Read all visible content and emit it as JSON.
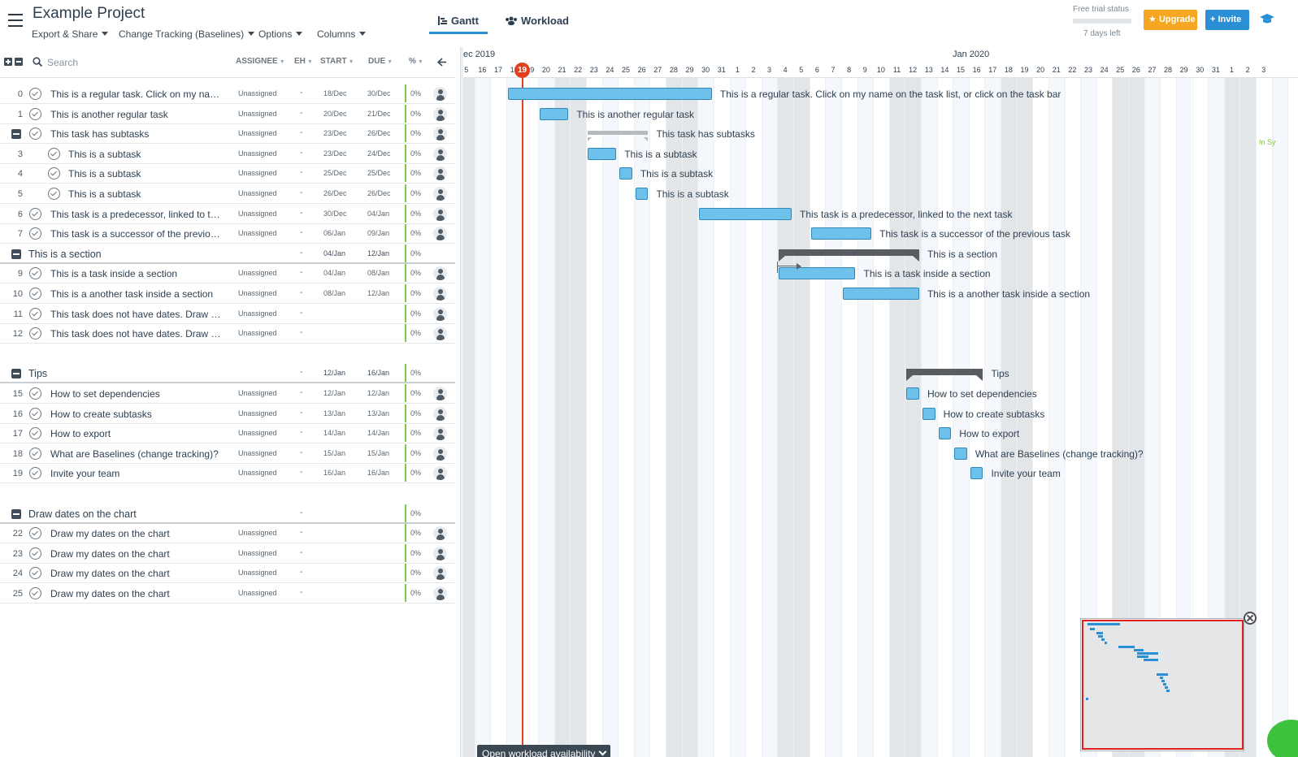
{
  "project": {
    "title": "Example Project"
  },
  "menus": [
    {
      "label": "Export & Share"
    },
    {
      "label": "Change Tracking (Baselines)"
    },
    {
      "label": "Options"
    },
    {
      "label": "Columns"
    }
  ],
  "view_tabs": {
    "gantt": "Gantt",
    "workload": "Workload",
    "active": "Gantt"
  },
  "trial": {
    "label": "Free trial status",
    "days_left": "7 days left"
  },
  "buttons": {
    "upgrade": "Upgrade",
    "invite": "Invite",
    "open_workload": "Open workload availability"
  },
  "grid": {
    "search_placeholder": "Search",
    "columns": {
      "assignee": "ASSIGNEE",
      "eh": "EH",
      "start": "START",
      "due": "DUE",
      "pct": "%"
    }
  },
  "rows": [
    {
      "num": "0",
      "name": "This is a regular task. Click on my name on the task list, or click on the task bar",
      "level": 0,
      "assignee": "Unassigned",
      "eh": "-",
      "start": "18/Dec",
      "due": "30/Dec",
      "pct": "0%"
    },
    {
      "num": "1",
      "name": "This is another regular task",
      "level": 0,
      "assignee": "Unassigned",
      "eh": "-",
      "start": "20/Dec",
      "due": "21/Dec",
      "pct": "0%"
    },
    {
      "num": "",
      "name": "This task has subtasks",
      "level": 0,
      "parent": true,
      "assignee": "Unassigned",
      "eh": "-",
      "start": "23/Dec",
      "due": "26/Dec",
      "pct": "0%"
    },
    {
      "num": "3",
      "name": "This is a subtask",
      "level": 1,
      "assignee": "Unassigned",
      "eh": "-",
      "start": "23/Dec",
      "due": "24/Dec",
      "pct": "0%"
    },
    {
      "num": "4",
      "name": "This is a subtask",
      "level": 1,
      "assignee": "Unassigned",
      "eh": "-",
      "start": "25/Dec",
      "due": "25/Dec",
      "pct": "0%"
    },
    {
      "num": "5",
      "name": "This is a subtask",
      "level": 1,
      "assignee": "Unassigned",
      "eh": "-",
      "start": "26/Dec",
      "due": "26/Dec",
      "pct": "0%"
    },
    {
      "num": "6",
      "name": "This task is a predecessor, linked to the next task",
      "level": 0,
      "assignee": "Unassigned",
      "eh": "-",
      "start": "30/Dec",
      "due": "04/Jan",
      "pct": "0%"
    },
    {
      "num": "7",
      "name": "This task is a successor of the previous task",
      "level": 0,
      "assignee": "Unassigned",
      "eh": "-",
      "start": "06/Jan",
      "due": "09/Jan",
      "pct": "0%"
    },
    {
      "num": "",
      "name": "This is a section",
      "section": true,
      "eh": "-",
      "start": "04/Jan",
      "due": "12/Jan",
      "pct": "0%"
    },
    {
      "num": "9",
      "name": "This is a task inside a section",
      "level": 0,
      "assignee": "Unassigned",
      "eh": "-",
      "start": "04/Jan",
      "due": "08/Jan",
      "pct": "0%"
    },
    {
      "num": "10",
      "name": "This is a another task inside a section",
      "level": 0,
      "assignee": "Unassigned",
      "eh": "-",
      "start": "08/Jan",
      "due": "12/Jan",
      "pct": "0%"
    },
    {
      "num": "11",
      "name": "This task does not have dates. Draw my dates on the chart",
      "level": 0,
      "assignee": "Unassigned",
      "eh": "-",
      "start": "",
      "due": "",
      "pct": "0%"
    },
    {
      "num": "12",
      "name": "This task does not have dates. Draw my dates on the chart",
      "level": 0,
      "assignee": "Unassigned",
      "eh": "-",
      "start": "",
      "due": "",
      "pct": "0%"
    },
    {
      "spacer": true
    },
    {
      "num": "",
      "name": "Tips",
      "section": true,
      "eh": "-",
      "start": "12/Jan",
      "due": "16/Jan",
      "pct": "0%"
    },
    {
      "num": "15",
      "name": "How to set dependencies",
      "level": 0,
      "assignee": "Unassigned",
      "eh": "-",
      "start": "12/Jan",
      "due": "12/Jan",
      "pct": "0%"
    },
    {
      "num": "16",
      "name": "How to create subtasks",
      "level": 0,
      "assignee": "Unassigned",
      "eh": "-",
      "start": "13/Jan",
      "due": "13/Jan",
      "pct": "0%"
    },
    {
      "num": "17",
      "name": "How to export",
      "level": 0,
      "assignee": "Unassigned",
      "eh": "-",
      "start": "14/Jan",
      "due": "14/Jan",
      "pct": "0%"
    },
    {
      "num": "18",
      "name": "What are Baselines (change tracking)?",
      "level": 0,
      "assignee": "Unassigned",
      "eh": "-",
      "start": "15/Jan",
      "due": "15/Jan",
      "pct": "0%"
    },
    {
      "num": "19",
      "name": "Invite your team",
      "level": 0,
      "assignee": "Unassigned",
      "eh": "-",
      "start": "16/Jan",
      "due": "16/Jan",
      "pct": "0%"
    },
    {
      "spacer": true
    },
    {
      "num": "",
      "name": "Draw dates on the chart",
      "section": true,
      "eh": "-",
      "start": "",
      "due": "",
      "pct": "0%"
    },
    {
      "num": "22",
      "name": "Draw my dates on the chart",
      "level": 0,
      "assignee": "Unassigned",
      "eh": "-",
      "start": "",
      "due": "",
      "pct": "0%"
    },
    {
      "num": "23",
      "name": "Draw my dates on the chart",
      "level": 0,
      "assignee": "Unassigned",
      "eh": "-",
      "start": "",
      "due": "",
      "pct": "0%"
    },
    {
      "num": "24",
      "name": "Draw my dates on the chart",
      "level": 0,
      "assignee": "Unassigned",
      "eh": "-",
      "start": "",
      "due": "",
      "pct": "0%"
    },
    {
      "num": "25",
      "name": "Draw my dates on the chart",
      "level": 0,
      "assignee": "Unassigned",
      "eh": "-",
      "start": "",
      "due": "",
      "pct": "0%"
    }
  ],
  "timeline": {
    "months": [
      {
        "label": "ec 2019"
      },
      {
        "label": "Jan 2020"
      }
    ],
    "days": [
      "5",
      "16",
      "17",
      "18",
      "19",
      "20",
      "21",
      "22",
      "23",
      "24",
      "25",
      "26",
      "27",
      "28",
      "29",
      "30",
      "31",
      "1",
      "2",
      "3",
      "4",
      "5",
      "6",
      "7",
      "8",
      "9",
      "10",
      "11",
      "12",
      "13",
      "14",
      "15",
      "16",
      "17",
      "18",
      "19",
      "20",
      "21",
      "22",
      "23",
      "24",
      "25",
      "26",
      "27",
      "28",
      "29",
      "30",
      "31",
      "1",
      "2",
      "3"
    ],
    "today": "19"
  },
  "bars": [
    {
      "label": "This is a regular task. Click on my name on the task list, or click on the task bar",
      "start_day": 18,
      "end_day": 30
    },
    {
      "label": "This is another regular task",
      "start_day": 20,
      "end_day": 21
    },
    {
      "label": "This task has subtasks",
      "start_day": 23,
      "end_day": 26,
      "type": "parent"
    },
    {
      "label": "This is a subtask",
      "start_day": 23,
      "end_day": 24
    },
    {
      "label": "This is a subtask",
      "start_day": 25,
      "end_day": 25
    },
    {
      "label": "This is a subtask",
      "start_day": 26,
      "end_day": 26
    },
    {
      "label": "This task is a predecessor, linked to the next task",
      "start_day": 30,
      "end_day": 35
    },
    {
      "label": "This task is a successor of the previous task",
      "start_day": 37,
      "end_day": 40
    },
    {
      "label": "This is a section",
      "start_day": 35,
      "end_day": 43,
      "type": "section"
    },
    {
      "label": "This is a task inside a section",
      "start_day": 35,
      "end_day": 39
    },
    {
      "label": "This is a another task inside a section",
      "start_day": 39,
      "end_day": 43
    },
    {
      "label": "Tips",
      "start_day": 43,
      "end_day": 47,
      "type": "section"
    },
    {
      "label": "How to set dependencies",
      "start_day": 43,
      "end_day": 43
    },
    {
      "label": "How to create subtasks",
      "start_day": 44,
      "end_day": 44
    },
    {
      "label": "How to export",
      "start_day": 45,
      "end_day": 45
    },
    {
      "label": "What are Baselines (change tracking)?",
      "start_day": 46,
      "end_day": 46
    },
    {
      "label": "Invite your team",
      "start_day": 47,
      "end_day": 47
    }
  ],
  "status": {
    "sync": "In Sy"
  },
  "colors": {
    "accent": "#2b8fd6",
    "upgrade": "#f5a623",
    "today": "#e2401c",
    "bar_fill": "#6ec1ea",
    "bar_border": "#2f87b8",
    "section": "#595d61",
    "progress": "#7ac943"
  }
}
